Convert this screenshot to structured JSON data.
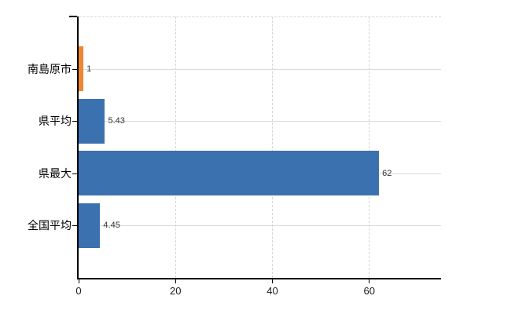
{
  "chart_data": {
    "type": "bar",
    "orientation": "horizontal",
    "title": "",
    "xlabel": "",
    "ylabel": "",
    "categories": [
      "南島原市",
      "県平均",
      "県最大",
      "全国平均"
    ],
    "values": [
      1,
      5.43,
      62,
      4.45
    ],
    "value_labels": [
      "1",
      "5.43",
      "62",
      "4.45"
    ],
    "bar_colors": [
      "#ed8733",
      "#3c71b0",
      "#3c71b0",
      "#3c71b0"
    ],
    "xlim": [
      0,
      74.8
    ],
    "xticks": [
      0,
      20,
      40,
      60
    ],
    "xtick_labels": [
      "0",
      "20",
      "40",
      "60"
    ],
    "grid": true,
    "legend": false
  },
  "colors": {
    "background": "#ffffff",
    "axis": "#000000",
    "vertical_grid": "#d6d4d8",
    "row_grid": "#d8dcd3",
    "tick_text": "#1a1a1a",
    "value_text": "#333333",
    "orange": "#ed8733",
    "blue": "#3c71b0"
  }
}
